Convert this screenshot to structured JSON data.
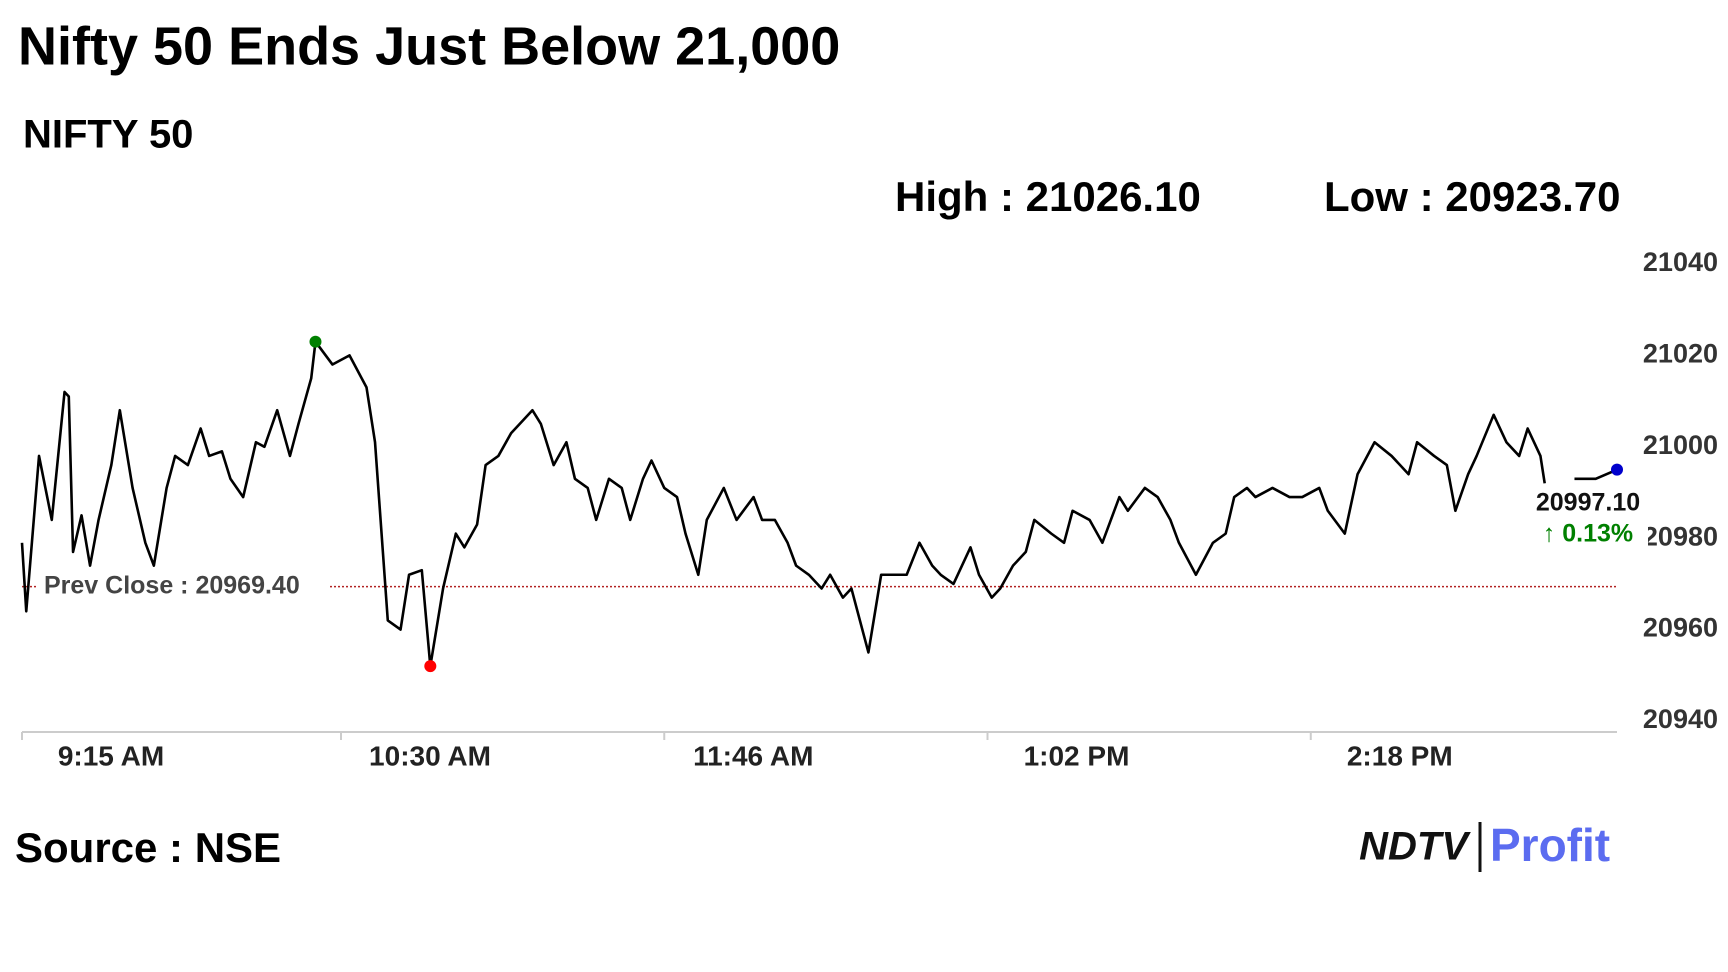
{
  "chart_data": {
    "type": "line",
    "title": "Nifty 50 Ends Just Below 21,000",
    "subtitle": "NIFTY 50",
    "high_label": "High : 21026.10",
    "low_label": "Low : 20923.70",
    "prev_close": 20969.4,
    "prev_close_label": "Prev Close : 20969.40",
    "last_label": "20997.10",
    "change_label": "↑ 0.13%",
    "source": "Source : NSE",
    "logo": [
      "NDTV",
      "Profit"
    ],
    "xlim": [
      0,
      375
    ],
    "xticks": [
      {
        "value": 0,
        "label": "9:15 AM"
      },
      {
        "value": 75,
        "label": "10:30 AM"
      },
      {
        "value": 151,
        "label": "11:46 AM"
      },
      {
        "value": 227,
        "label": "1:02 PM"
      },
      {
        "value": 303,
        "label": "2:18 PM"
      }
    ],
    "ylim": [
      20940,
      21040
    ],
    "yticks": [
      20940,
      20960,
      20980,
      21000,
      21020,
      21040
    ],
    "series": [
      {
        "name": "NIFTY 50",
        "color": "#000000",
        "x": [
          0,
          1,
          4,
          7,
          10,
          11,
          12,
          14,
          16,
          18,
          21,
          23,
          26,
          29,
          31,
          34,
          36,
          39,
          42,
          44,
          47,
          49,
          52,
          55,
          57,
          60,
          63,
          65,
          68,
          69,
          73,
          77,
          81,
          83,
          86,
          89,
          91,
          94,
          96,
          99,
          102,
          104,
          107,
          109,
          112,
          115,
          117,
          120,
          122,
          125,
          128,
          130,
          133,
          135,
          138,
          141,
          143,
          146,
          148,
          151,
          154,
          156,
          159,
          161,
          165,
          168,
          172,
          174,
          177,
          180,
          182,
          185,
          188,
          190,
          193,
          195,
          199,
          202,
          206,
          208,
          211,
          214,
          216,
          219,
          223,
          225,
          228,
          230,
          233,
          236,
          238,
          242,
          245,
          247,
          251,
          254,
          258,
          260,
          264,
          267,
          270,
          272,
          276,
          280,
          283,
          285,
          288,
          290,
          294,
          298,
          301,
          305,
          307,
          311,
          314,
          318,
          322,
          326,
          328,
          332,
          335,
          337,
          340,
          342,
          346,
          349,
          352,
          354,
          357,
          358,
          361,
          365,
          370,
          375
        ],
        "values": [
          20979,
          20964,
          20998,
          20984,
          21012,
          21011,
          20977,
          20985,
          20974,
          20984,
          20996,
          21008,
          20991,
          20979,
          20974,
          20991,
          20998,
          20996,
          21004,
          20998,
          20999,
          20993,
          20989,
          21001,
          21000,
          21008,
          20998,
          21005,
          21015,
          21023,
          21018,
          21020,
          21013,
          21001,
          20962,
          20960,
          20972,
          20973,
          20952,
          20969,
          20981,
          20978,
          20983,
          20996,
          20998,
          21003,
          21005,
          21008,
          21005,
          20996,
          21001,
          20993,
          20991,
          20984,
          20993,
          20991,
          20984,
          20993,
          20997,
          20991,
          20989,
          20981,
          20972,
          20984,
          20991,
          20984,
          20989,
          20984,
          20984,
          20979,
          20974,
          20972,
          20969,
          20972,
          20967,
          20969,
          20955,
          20972,
          20972,
          20972,
          20979,
          20974,
          20972,
          20970,
          20978,
          20972,
          20967,
          20969,
          20974,
          20977,
          20984,
          20981,
          20979,
          20986,
          20984,
          20979,
          20989,
          20986,
          20991,
          20989,
          20984,
          20979,
          20972,
          20979,
          20981,
          20989,
          20991,
          20989,
          20991,
          20989,
          20989,
          20991,
          20986,
          20981,
          20994,
          21001,
          20998,
          20994,
          21001,
          20998,
          20996,
          20986,
          20994,
          20998,
          21007,
          21001,
          20998,
          21004,
          20998,
          20992,
          null,
          20993,
          20993,
          20995
        ]
      }
    ],
    "high_index": 29,
    "high_color": "#008000",
    "low_index": 38,
    "low_color": "#ff0000",
    "last_color": "#0000cc",
    "prev_close_color": "#b22222",
    "change_color": "#008000",
    "grid": false
  }
}
